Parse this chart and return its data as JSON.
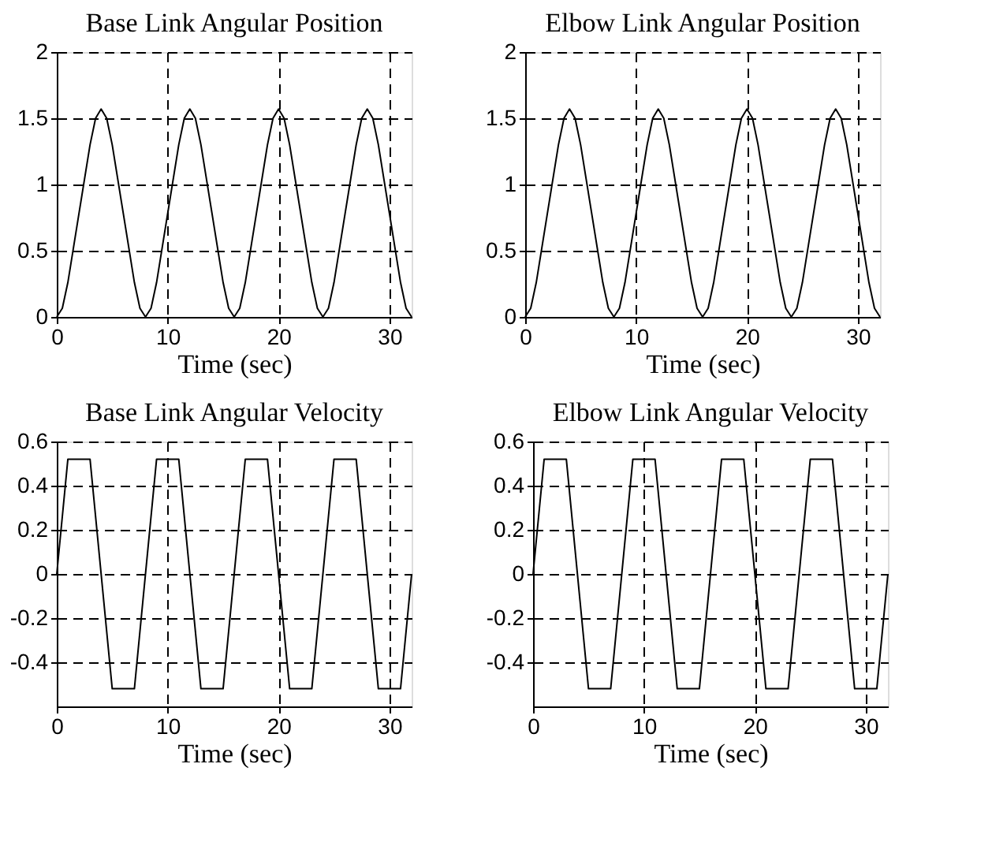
{
  "chart_data": [
    {
      "type": "line",
      "title": "Base Link Angular Position",
      "xlabel": "Time (sec)",
      "xlim": [
        0,
        32
      ],
      "xticks": [
        0,
        10,
        20,
        30
      ],
      "ylim": [
        0,
        2
      ],
      "yticks": [
        0,
        0.5,
        1,
        1.5,
        2
      ],
      "grid": true,
      "line_style": "solid",
      "series": [
        {
          "color": "#000000",
          "x": [
            0,
            0.5,
            1,
            2,
            3,
            3.5,
            4,
            4.5,
            5,
            6,
            7,
            7.5,
            8,
            8.5,
            9,
            10,
            11,
            11.5,
            12,
            12.5,
            13,
            14,
            15,
            15.5,
            16,
            16.5,
            17,
            18,
            19,
            19.5,
            20,
            20.5,
            21,
            22,
            23,
            23.5,
            24,
            24.5,
            25,
            26,
            27,
            27.5,
            28,
            28.5,
            29,
            30,
            31,
            31.5,
            32
          ],
          "values": [
            0,
            0.065,
            0.26,
            0.78,
            1.3,
            1.5,
            1.57,
            1.5,
            1.3,
            0.78,
            0.26,
            0.065,
            0,
            0.065,
            0.26,
            0.78,
            1.3,
            1.5,
            1.57,
            1.5,
            1.3,
            0.78,
            0.26,
            0.065,
            0,
            0.065,
            0.26,
            0.78,
            1.3,
            1.5,
            1.57,
            1.5,
            1.3,
            0.78,
            0.26,
            0.065,
            0,
            0.065,
            0.26,
            0.78,
            1.3,
            1.5,
            1.57,
            1.5,
            1.3,
            0.78,
            0.26,
            0.065,
            0
          ]
        }
      ]
    },
    {
      "type": "line",
      "title": "Elbow Link Angular Position",
      "xlabel": "Time (sec)",
      "xlim": [
        0,
        32
      ],
      "xticks": [
        0,
        10,
        20,
        30
      ],
      "ylim": [
        0,
        2
      ],
      "yticks": [
        0,
        0.5,
        1,
        1.5,
        2
      ],
      "grid": true,
      "line_style": "solid",
      "series": [
        {
          "color": "#000000",
          "x": [
            0,
            0.5,
            1,
            2,
            3,
            3.5,
            4,
            4.5,
            5,
            6,
            7,
            7.5,
            8,
            8.5,
            9,
            10,
            11,
            11.5,
            12,
            12.5,
            13,
            14,
            15,
            15.5,
            16,
            16.5,
            17,
            18,
            19,
            19.5,
            20,
            20.5,
            21,
            22,
            23,
            23.5,
            24,
            24.5,
            25,
            26,
            27,
            27.5,
            28,
            28.5,
            29,
            30,
            31,
            31.5,
            32
          ],
          "values": [
            0,
            0.065,
            0.26,
            0.78,
            1.3,
            1.5,
            1.57,
            1.5,
            1.3,
            0.78,
            0.26,
            0.065,
            0,
            0.065,
            0.26,
            0.78,
            1.3,
            1.5,
            1.57,
            1.5,
            1.3,
            0.78,
            0.26,
            0.065,
            0,
            0.065,
            0.26,
            0.78,
            1.3,
            1.5,
            1.57,
            1.5,
            1.3,
            0.78,
            0.26,
            0.065,
            0,
            0.065,
            0.26,
            0.78,
            1.3,
            1.5,
            1.57,
            1.5,
            1.3,
            0.78,
            0.26,
            0.065,
            0
          ]
        }
      ]
    },
    {
      "type": "line",
      "title": "Base Link Angular Velocity",
      "xlabel": "Time (sec)",
      "xlim": [
        0,
        32
      ],
      "xticks": [
        0,
        10,
        20,
        30
      ],
      "ylim": [
        -0.6,
        0.6
      ],
      "yticks": [
        -0.4,
        -0.2,
        0,
        0.2,
        0.4,
        0.6
      ],
      "grid": true,
      "line_style": "solid",
      "series": [
        {
          "color": "#000000",
          "x": [
            0,
            1,
            3,
            5,
            7,
            9,
            11,
            13,
            15,
            17,
            19,
            21,
            23,
            25,
            27,
            29,
            31,
            32
          ],
          "values": [
            0,
            0.52,
            0.52,
            -0.52,
            -0.52,
            0.52,
            0.52,
            -0.52,
            -0.52,
            0.52,
            0.52,
            -0.52,
            -0.52,
            0.52,
            0.52,
            -0.52,
            -0.52,
            0
          ]
        }
      ]
    },
    {
      "type": "line",
      "title": "Elbow Link Angular Velocity",
      "xlabel": "Time (sec)",
      "xlim": [
        0,
        32
      ],
      "xticks": [
        0,
        10,
        20,
        30
      ],
      "ylim": [
        -0.6,
        0.6
      ],
      "yticks": [
        -0.4,
        -0.2,
        0,
        0.2,
        0.4,
        0.6
      ],
      "grid": true,
      "line_style": "solid",
      "series": [
        {
          "color": "#000000",
          "x": [
            0,
            1,
            3,
            5,
            7,
            9,
            11,
            13,
            15,
            17,
            19,
            21,
            23,
            25,
            27,
            29,
            31,
            32
          ],
          "values": [
            0,
            0.52,
            0.52,
            -0.52,
            -0.52,
            0.52,
            0.52,
            -0.52,
            -0.52,
            0.52,
            0.52,
            -0.52,
            -0.52,
            0.52,
            0.52,
            -0.52,
            -0.52,
            0
          ]
        }
      ]
    }
  ]
}
